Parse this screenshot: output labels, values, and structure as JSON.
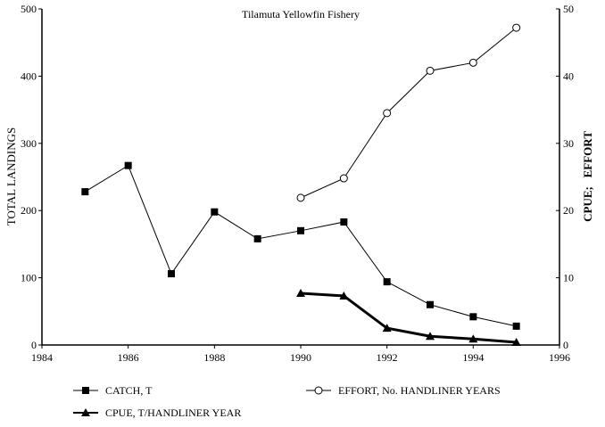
{
  "chart_data": {
    "type": "line",
    "title": "Tilamuta Yellowfin Fishery",
    "xlabel": "",
    "ylabel": "TOTAL LANDINGS",
    "y2label": "CPUE;   EFFORT",
    "xlim": [
      1984,
      1996
    ],
    "ylim": [
      0,
      500
    ],
    "y2lim": [
      0,
      50
    ],
    "xticks": [
      "1984",
      "1986",
      "1988",
      "1990",
      "1992",
      "1994",
      "1996"
    ],
    "yticks": [
      "0",
      "100",
      "200",
      "300",
      "400",
      "500"
    ],
    "y2ticks": [
      "0",
      "10",
      "20",
      "30",
      "40",
      "50"
    ],
    "legend_position": "bottom",
    "series": [
      {
        "name": "CATCH, T",
        "axis": "left",
        "marker": "square",
        "x": [
          1985,
          1986,
          1987,
          1988,
          1989,
          1990,
          1991,
          1992,
          1993,
          1994,
          1995
        ],
        "values": [
          228,
          267,
          106,
          198,
          158,
          170,
          183,
          94,
          60,
          42,
          28
        ]
      },
      {
        "name": "EFFORT, No. HANDLINER YEARS",
        "axis": "right",
        "marker": "open-circle",
        "x": [
          1990,
          1991,
          1992,
          1993,
          1994,
          1995
        ],
        "values": [
          21.9,
          24.8,
          34.5,
          40.8,
          42,
          47.2
        ]
      },
      {
        "name": "CPUE, T/HANDLINER YEAR",
        "axis": "right",
        "marker": "triangle",
        "x": [
          1990,
          1991,
          1992,
          1993,
          1994,
          1995
        ],
        "values": [
          7.7,
          7.3,
          2.5,
          1.3,
          0.9,
          0.4
        ]
      }
    ]
  }
}
